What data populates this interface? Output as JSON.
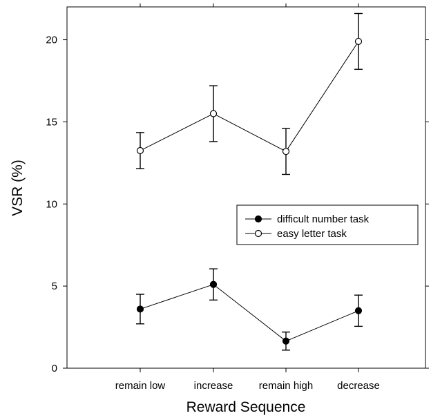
{
  "chart_data": {
    "type": "line",
    "xlabel": "Reward Sequence",
    "ylabel": "VSR (%)",
    "categories": [
      "remain low",
      "increase",
      "remain high",
      "decrease"
    ],
    "ylim": [
      0,
      22
    ],
    "yticks": [
      0,
      5,
      10,
      15,
      20
    ],
    "grid": false,
    "legend_position": "right",
    "series": [
      {
        "name": "difficult number task",
        "marker": "filled-circle",
        "color": "#000000",
        "values": [
          3.6,
          5.1,
          1.65,
          3.5
        ],
        "error": [
          0.9,
          0.95,
          0.55,
          0.95
        ]
      },
      {
        "name": "easy letter task",
        "marker": "open-circle",
        "color": "#000000",
        "values": [
          13.25,
          15.5,
          13.2,
          19.9
        ],
        "error": [
          1.1,
          1.7,
          1.4,
          1.7
        ]
      }
    ]
  }
}
